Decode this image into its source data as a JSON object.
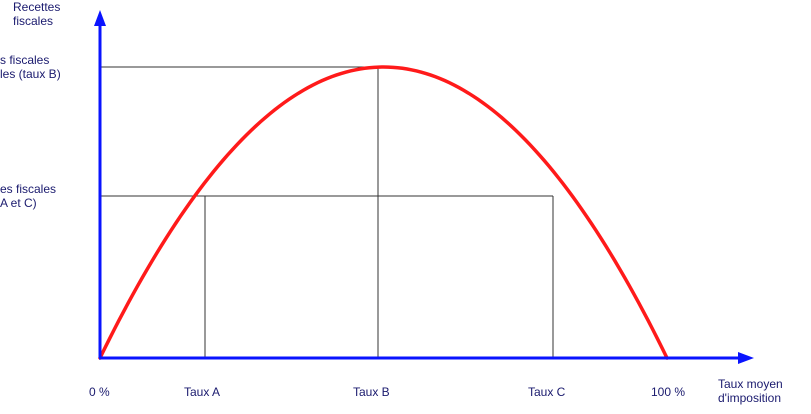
{
  "diagram": {
    "y_axis_label": [
      "Recettes",
      "fiscales"
    ],
    "x_axis_label": [
      "Taux moyen",
      "d'imposition"
    ],
    "ticks": {
      "zero": "0 %",
      "a": "Taux A",
      "b": "Taux B",
      "c": "Taux C",
      "hundred": "100 %"
    },
    "level_b_label": [
      "s fiscales",
      "les (taux B)"
    ],
    "level_ac_label": [
      "es fiscales",
      "A et C)"
    ],
    "colors": {
      "axis": "#0000ff",
      "curve": "#ff0000",
      "guides": "#000000",
      "text": "#1a1a6e"
    }
  }
}
